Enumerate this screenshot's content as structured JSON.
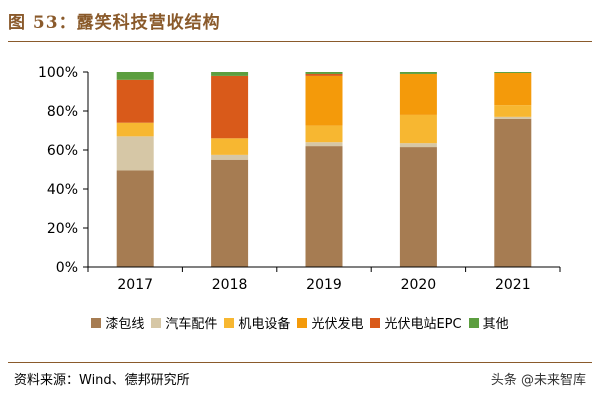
{
  "figure": {
    "title": "图 53：露笑科技营收结构",
    "source": "资料来源：Wind、德邦研究所",
    "watermark": "头条 @未来智库"
  },
  "chart_data": {
    "type": "bar",
    "stacked": true,
    "categories": [
      "2017",
      "2018",
      "2019",
      "2020",
      "2021"
    ],
    "ylim": [
      0,
      100
    ],
    "yticks": [
      "0%",
      "20%",
      "40%",
      "60%",
      "80%",
      "100%"
    ],
    "legend_position": "bottom",
    "series": [
      {
        "name": "漆包线",
        "color": "#a67c52",
        "values": [
          49.5,
          55,
          62,
          61.5,
          76
        ]
      },
      {
        "name": "汽车配件",
        "color": "#d6c7a6",
        "values": [
          17.5,
          2.5,
          2,
          2,
          1
        ]
      },
      {
        "name": "机电设备",
        "color": "#f7b731",
        "values": [
          7,
          8.5,
          8.5,
          14.5,
          6
        ]
      },
      {
        "name": "光伏发电",
        "color": "#f49a0a",
        "values": [
          0,
          0,
          25.5,
          21,
          16.5
        ]
      },
      {
        "name": "光伏电站EPC",
        "color": "#d95a1a",
        "values": [
          22,
          32,
          1,
          0,
          0
        ]
      },
      {
        "name": "其他",
        "color": "#5c9e3f",
        "values": [
          4,
          2,
          1,
          1,
          0.5
        ]
      }
    ]
  }
}
